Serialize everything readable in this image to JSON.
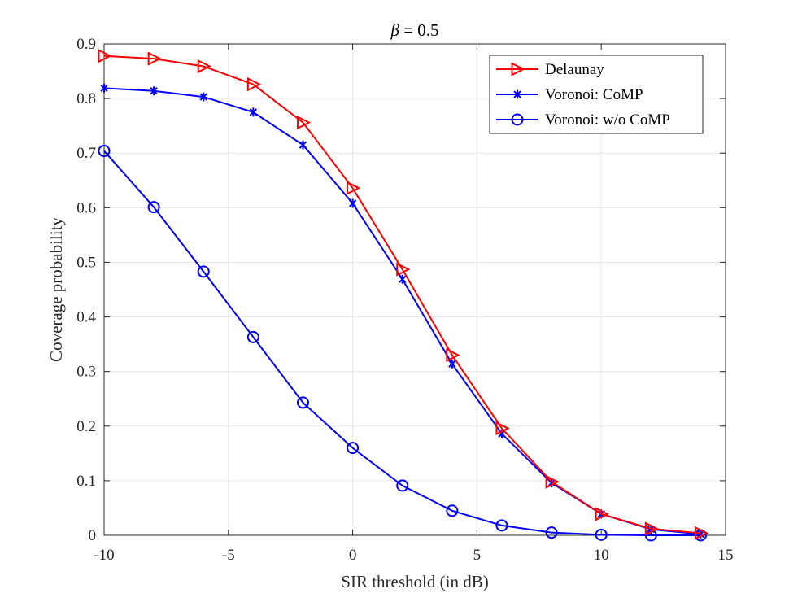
{
  "chart_data": {
    "type": "line",
    "title": {
      "symbol": "β",
      "text": " = 0.5"
    },
    "xlabel": "SIR threshold (in dB)",
    "ylabel": "Coverage probability",
    "xlim": [
      -10,
      15
    ],
    "ylim": [
      0,
      0.9
    ],
    "xticks": [
      -10,
      -5,
      0,
      5,
      10,
      15
    ],
    "xtick_labels": [
      "-10",
      "-5",
      "0",
      "5",
      "10",
      "15"
    ],
    "yticks": [
      0,
      0.1,
      0.2,
      0.3,
      0.4,
      0.5,
      0.6,
      0.7,
      0.8,
      0.9
    ],
    "ytick_labels": [
      "0",
      "0.1",
      "0.2",
      "0.3",
      "0.4",
      "0.5",
      "0.6",
      "0.7",
      "0.8",
      "0.9"
    ],
    "grid": true,
    "legend_position": "top-right",
    "x": [
      -10,
      -8,
      -6,
      -4,
      -2,
      0,
      2,
      4,
      6,
      8,
      10,
      12,
      14
    ],
    "series": [
      {
        "name": "Delaunay",
        "color": "#ff0000",
        "marker": "triangle-right",
        "values": [
          0.878,
          0.873,
          0.859,
          0.826,
          0.756,
          0.636,
          0.487,
          0.33,
          0.196,
          0.098,
          0.039,
          0.012,
          0.004
        ]
      },
      {
        "name": "Voronoi: CoMP",
        "color": "#0000ff",
        "marker": "asterisk",
        "values": [
          0.819,
          0.814,
          0.803,
          0.775,
          0.715,
          0.608,
          0.469,
          0.314,
          0.186,
          0.096,
          0.039,
          0.011,
          0.002
        ]
      },
      {
        "name": "Voronoi: w/o CoMP",
        "color": "#0000ff",
        "marker": "circle",
        "values": [
          0.704,
          0.601,
          0.483,
          0.363,
          0.243,
          0.16,
          0.091,
          0.045,
          0.018,
          0.005,
          0.001,
          0.0,
          0.0
        ]
      }
    ]
  }
}
